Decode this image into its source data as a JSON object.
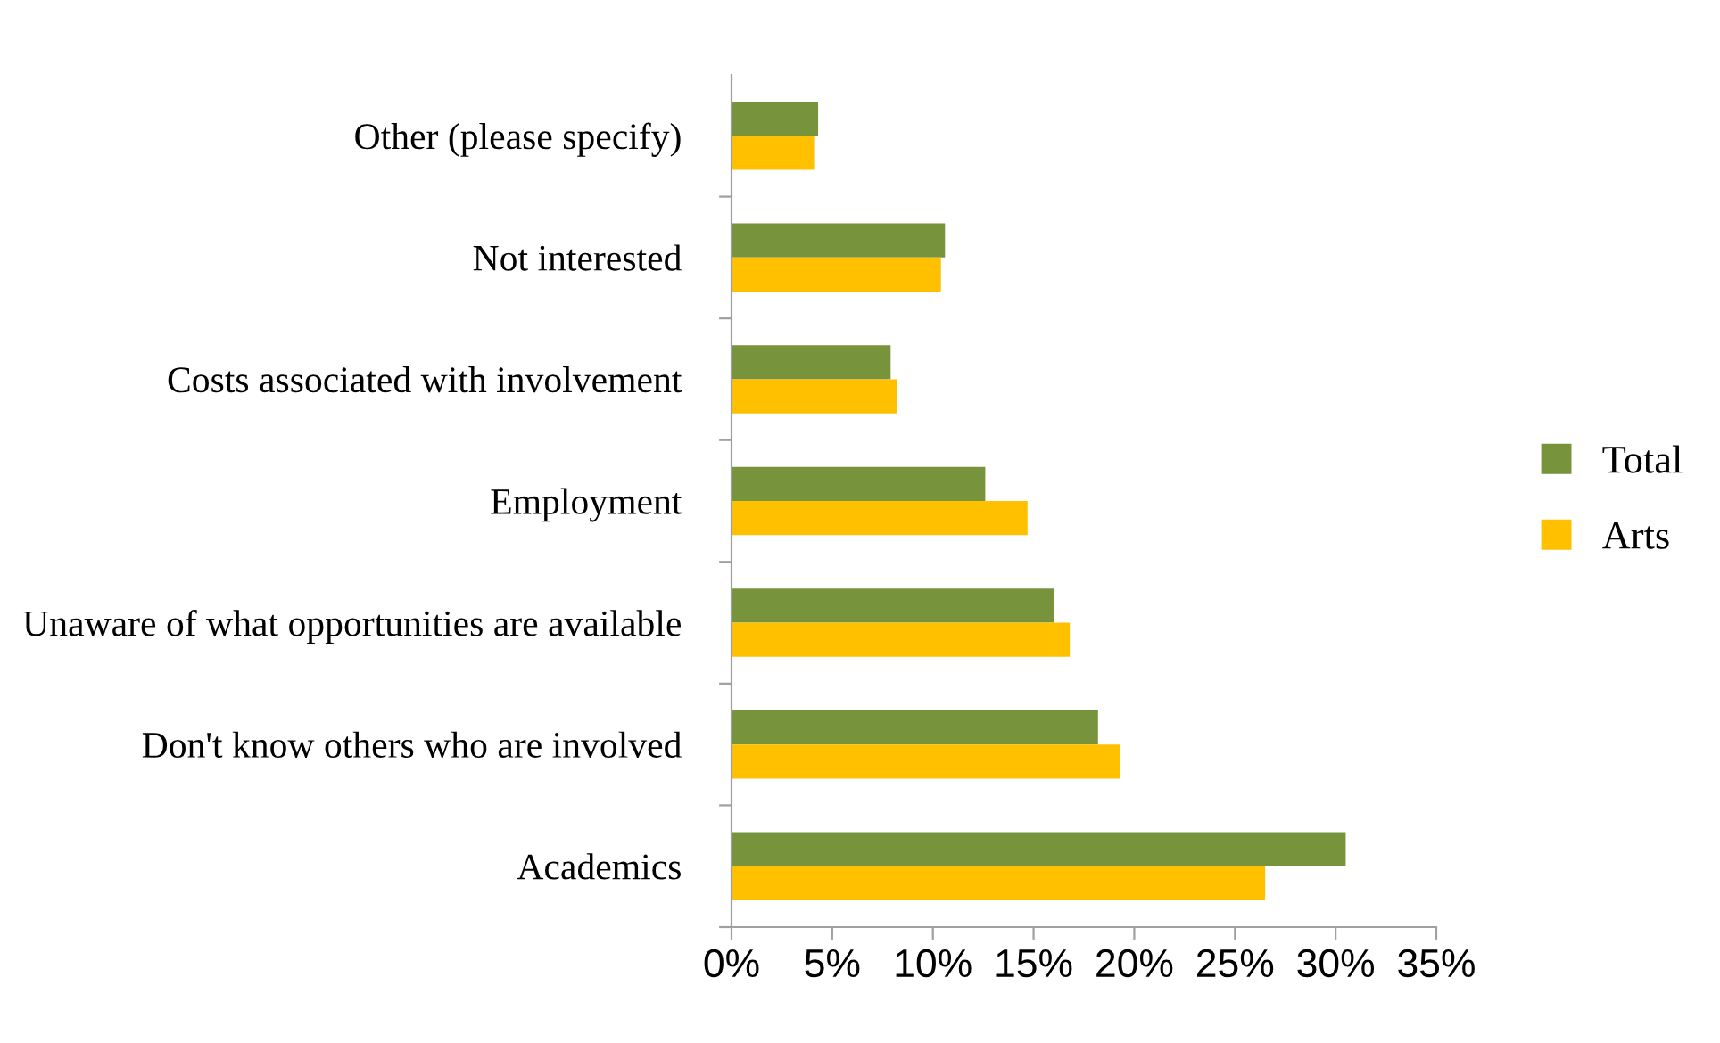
{
  "chart_data": {
    "type": "bar",
    "orientation": "horizontal",
    "categories": [
      "Other (please specify)",
      "Not interested",
      "Costs associated with involvement",
      "Employment",
      "Unaware of what opportunities are available",
      "Don't know others who are involved",
      "Academics"
    ],
    "series": [
      {
        "name": "Total",
        "color": "#77933c",
        "values": [
          4.3,
          10.6,
          7.9,
          12.6,
          16.0,
          18.2,
          30.5
        ]
      },
      {
        "name": "Arts",
        "color": "#ffc000",
        "values": [
          4.1,
          10.4,
          8.2,
          14.7,
          16.8,
          19.3,
          26.5
        ]
      }
    ],
    "xlim": [
      0,
      35
    ],
    "xticks": [
      {
        "value": 0,
        "label": "0%"
      },
      {
        "value": 5,
        "label": "5%"
      },
      {
        "value": 10,
        "label": "10%"
      },
      {
        "value": 15,
        "label": "15%"
      },
      {
        "value": 20,
        "label": "20%"
      },
      {
        "value": 25,
        "label": "25%"
      },
      {
        "value": 30,
        "label": "30%"
      },
      {
        "value": 35,
        "label": "35%"
      }
    ],
    "grid": false,
    "legend": "right"
  }
}
